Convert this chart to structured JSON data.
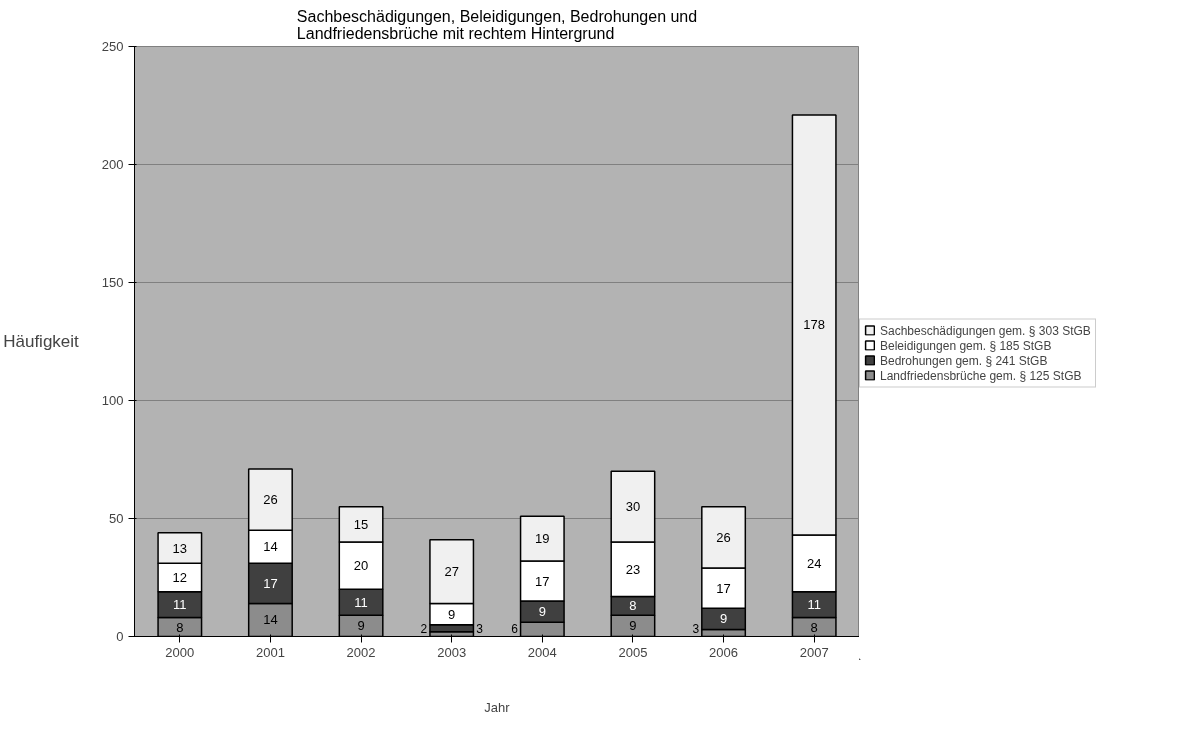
{
  "chart_data": {
    "type": "bar",
    "title": "Sachbeschädigungen, Beleidigungen, Bedrohungen und\nLandfriedensbrüche mit rechtem Hintergrund",
    "xlabel": "Jahr",
    "ylabel": "Häufigkeit",
    "categories": [
      "2000",
      "2001",
      "2002",
      "2003",
      "2004",
      "2005",
      "2006",
      "2007"
    ],
    "stacked": true,
    "data_labels": true,
    "ylim": [
      0,
      250
    ],
    "yticks": [
      0,
      50,
      100,
      150,
      200,
      250
    ],
    "grid": "y",
    "legend": "right",
    "series": [
      {
        "name": "Landfriedensbrüche gem. § 125 StGB",
        "color": "#8c8c8c",
        "values": [
          8,
          14,
          9,
          2,
          6,
          9,
          3,
          8
        ]
      },
      {
        "name": "Bedrohungen gem. § 241 StGB",
        "color": "#404040",
        "values": [
          11,
          17,
          11,
          3,
          9,
          8,
          9,
          11
        ]
      },
      {
        "name": "Beleidigungen gem. § 185 StGB",
        "color": "#ffffff",
        "values": [
          12,
          14,
          20,
          9,
          17,
          23,
          17,
          24
        ]
      },
      {
        "name": "Sachbeschädigungen gem. § 303 StGB",
        "color": "#f0f0f0",
        "values": [
          13,
          26,
          15,
          27,
          19,
          30,
          26,
          178
        ]
      }
    ]
  }
}
